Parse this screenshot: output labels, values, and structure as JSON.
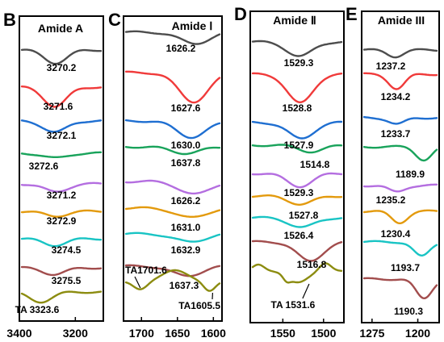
{
  "colors": [
    "#4d4d4d",
    "#f03a3a",
    "#1f6fd1",
    "#19a35b",
    "#b46ee0",
    "#e39a0d",
    "#19c4c4",
    "#a24d4d",
    "#8c8c10"
  ],
  "chart_data": [
    {
      "type": "line",
      "panel": "B",
      "title": "Amide A",
      "xlim": [
        3400,
        3100
      ],
      "x_ticks": [
        "3400",
        "3200"
      ],
      "series": [
        {
          "peak": 3270.2,
          "label": "3270.2"
        },
        {
          "peak": 3271.6,
          "label": "3271.6"
        },
        {
          "peak": 3272.1,
          "label": "3272.1"
        },
        {
          "peak": 3272.6,
          "label": "3272.6"
        },
        {
          "peak": 3271.2,
          "label": "3271.2"
        },
        {
          "peak": 3272.9,
          "label": "3272.9"
        },
        {
          "peak": 3274.5,
          "label": "3274.5"
        },
        {
          "peak": 3275.5,
          "label": "3275.5"
        },
        {
          "peak": 3323.6,
          "label": "TA 3323.6"
        }
      ]
    },
    {
      "type": "line",
      "panel": "C",
      "title": "Amide Ⅰ",
      "xlim": [
        1725,
        1588
      ],
      "x_ticks": [
        "1700",
        "1650",
        "1600"
      ],
      "series": [
        {
          "peak": 1626.2,
          "label": "1626.2"
        },
        {
          "peak": 1627.6,
          "label": "1627.6"
        },
        {
          "peak": 1630.0,
          "label": "1630.0"
        },
        {
          "peak": 1637.8,
          "label": "1637.8"
        },
        {
          "peak": 1626.2,
          "label": "1626.2"
        },
        {
          "peak": 1631.0,
          "label": "1631.0"
        },
        {
          "peak": 1632.9,
          "label": "1632.9"
        },
        {
          "peak": 1637.3,
          "label": "1637.3"
        },
        {
          "peak": 1605.5,
          "label": "TA1605.5",
          "peak2": 1701.6,
          "label2": "TA1701.6"
        }
      ]
    },
    {
      "type": "line",
      "panel": "D",
      "title": "Amide Ⅱ",
      "xlim": [
        1590,
        1475
      ],
      "x_ticks": [
        "1550",
        "1500"
      ],
      "series": [
        {
          "peak": 1529.3,
          "label": "1529.3"
        },
        {
          "peak": 1528.8,
          "label": "1528.8"
        },
        {
          "peak": 1527.9,
          "label": "1527.9"
        },
        {
          "peak": 1514.8,
          "label": "1514.8"
        },
        {
          "peak": 1529.3,
          "label": "1529.3"
        },
        {
          "peak": 1527.8,
          "label": "1527.8"
        },
        {
          "peak": 1526.4,
          "label": "1526.4"
        },
        {
          "peak": 1516.8,
          "label": "1516.8"
        },
        {
          "peak": 1531.6,
          "label": "TA 1531.6"
        }
      ]
    },
    {
      "type": "line",
      "panel": "E",
      "title": "Amide III",
      "xlim": [
        1292,
        1165
      ],
      "x_ticks": [
        "1275",
        "1200"
      ],
      "series": [
        {
          "peak": 1237.2,
          "label": "1237.2"
        },
        {
          "peak": 1234.2,
          "label": "1234.2"
        },
        {
          "peak": 1233.7,
          "label": "1233.7"
        },
        {
          "peak": 1189.9,
          "label": "1189.9"
        },
        {
          "peak": 1235.2,
          "label": "1235.2"
        },
        {
          "peak": 1230.4,
          "label": "1230.4"
        },
        {
          "peak": 1193.7,
          "label": "1193.7"
        },
        {
          "peak": 1190.3,
          "label": "1190.3"
        }
      ]
    }
  ]
}
